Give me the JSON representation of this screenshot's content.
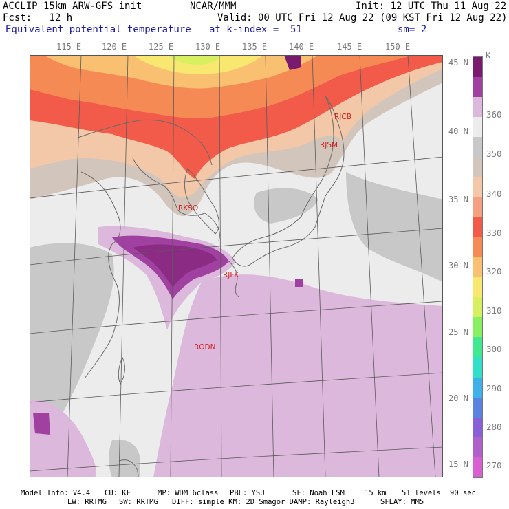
{
  "header": {
    "model": "ACCLIP 15km ARW-GFS init",
    "center": "NCAR/MMM",
    "init": "Init: 12 UTC Thu 11 Aug 22",
    "fcst": "Fcst:   12 h",
    "valid": "Valid: 00 UTC Fri 12 Aug 22 (09 KST Fri 12 Aug 22)",
    "field": "Equivalent potential temperature",
    "level": "at k-index =  51",
    "smooth": "sm= 2"
  },
  "lon_ticks": [
    "115 E",
    "120 E",
    "125 E",
    "130 E",
    "135 E",
    "140 E",
    "145 E",
    "150 E"
  ],
  "lat_ticks": [
    "45 N",
    "40 N",
    "35 N",
    "30 N",
    "25 N",
    "20 N",
    "15 N"
  ],
  "colorbar": {
    "unit": "K",
    "labels": [
      "360",
      "350",
      "340",
      "330",
      "320",
      "310",
      "300",
      "290",
      "280",
      "270"
    ],
    "colors": [
      "#7a1a6e",
      "#a040a0",
      "#dcb8dc",
      "#ececec",
      "#c8c8c8",
      "#d2c6bc",
      "#f2c8a8",
      "#f5a080",
      "#f25a4a",
      "#f58a55",
      "#f8c070",
      "#f8e870",
      "#d8f060",
      "#88f060",
      "#40e890",
      "#30e0c8",
      "#40b0e8",
      "#5a82e0",
      "#8a60d8",
      "#b060c8",
      "#d860d0"
    ]
  },
  "stations": [
    {
      "id": "RJCB"
    },
    {
      "id": "RJSM"
    },
    {
      "id": "RKSO"
    },
    {
      "id": "RJFK"
    },
    {
      "id": "RODN"
    }
  ],
  "footer": {
    "line1": [
      {
        "key": "info",
        "text": "Model Info: V4.4"
      },
      {
        "key": "cu",
        "text": "CU: KF"
      },
      {
        "key": "mp",
        "text": "MP: WDM 6class"
      },
      {
        "key": "pbl",
        "text": "PBL: YSU"
      },
      {
        "key": "sf",
        "text": "SF: Noah LSM"
      },
      {
        "key": "res",
        "text": "15 km"
      },
      {
        "key": "levels",
        "text": "51 levels"
      },
      {
        "key": "dt",
        "text": "90 sec"
      }
    ],
    "line2": [
      {
        "key": "lw",
        "text": "LW: RRTMG"
      },
      {
        "key": "sw",
        "text": "SW: RRTMG"
      },
      {
        "key": "diff",
        "text": "DIFF: simple KM: 2D Smagor DAMP: Rayleigh3"
      },
      {
        "key": "sflay",
        "text": "SFLAY: MM5"
      }
    ]
  }
}
